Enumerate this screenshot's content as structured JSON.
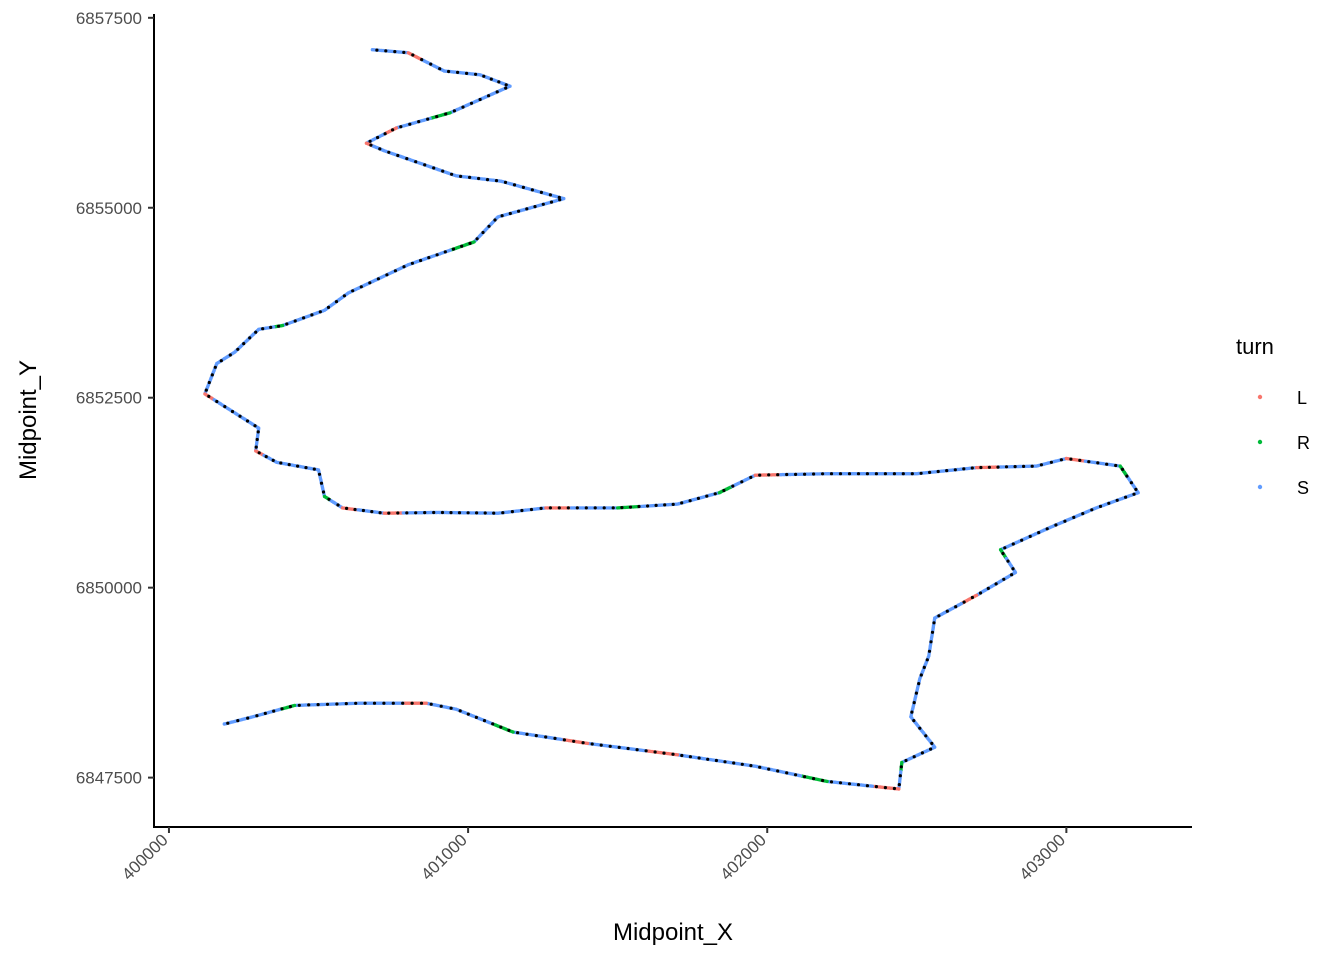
{
  "chart_data": {
    "type": "scatter",
    "title": "",
    "xlabel": "Midpoint_X",
    "ylabel": "Midpoint_Y",
    "xlim": [
      399950,
      403420
    ],
    "ylim": [
      6846850,
      6857550
    ],
    "x_ticks": [
      400000,
      401000,
      402000,
      403000
    ],
    "y_ticks": [
      6847500,
      6850000,
      6852500,
      6855000,
      6857500
    ],
    "x_tick_labels": [
      "400000",
      "401000",
      "402000",
      "403000"
    ],
    "y_tick_labels": [
      "6847500",
      "6850000",
      "6852500",
      "6855000",
      "6857500"
    ],
    "grid": false,
    "legend": {
      "title": "turn",
      "position": "right",
      "entries": [
        {
          "label": "L",
          "color": "#F8766D"
        },
        {
          "label": "R",
          "color": "#00BA38"
        },
        {
          "label": "S",
          "color": "#619CFF"
        }
      ]
    },
    "overlay_point_color": "#000000",
    "track": {
      "x": [
        400680,
        400800,
        400920,
        401040,
        401140,
        400940,
        400760,
        400660,
        400720,
        400960,
        401110,
        401320,
        401100,
        401020,
        400800,
        400600,
        400520,
        400380,
        400300,
        400220,
        400160,
        400120,
        400200,
        400300,
        400290,
        400360,
        400500,
        400520,
        400580,
        400720,
        400900,
        401100,
        401260,
        401500,
        401700,
        401840,
        401960,
        402200,
        402500,
        402700,
        402900,
        403000,
        403180,
        403240,
        403100,
        402950,
        402780,
        402830,
        402700,
        402560,
        402540,
        402510,
        402480,
        402560,
        402450,
        402440,
        402200,
        401960,
        401700,
        401400,
        401150,
        400960,
        400860,
        400640,
        400420,
        400280,
        400180
      ],
      "y": [
        6857080,
        6857040,
        6856800,
        6856750,
        6856600,
        6856250,
        6856050,
        6855850,
        6855750,
        6855420,
        6855350,
        6855120,
        6854880,
        6854550,
        6854250,
        6853880,
        6853650,
        6853450,
        6853400,
        6853100,
        6852950,
        6852550,
        6852350,
        6852100,
        6851800,
        6851650,
        6851550,
        6851200,
        6851050,
        6850980,
        6850990,
        6850980,
        6851050,
        6851050,
        6851100,
        6851250,
        6851480,
        6851500,
        6851500,
        6851580,
        6851600,
        6851700,
        6851600,
        6851250,
        6851050,
        6850800,
        6850500,
        6850200,
        6849900,
        6849600,
        6849100,
        6848800,
        6848300,
        6847900,
        6847700,
        6847350,
        6847450,
        6847650,
        6847800,
        6847950,
        6848100,
        6848400,
        6848480,
        6848480,
        6848450,
        6848300,
        6848200
      ],
      "turn": [
        "S",
        "L",
        "S",
        "S",
        "S",
        "R",
        "L",
        "L",
        "S",
        "S",
        "S",
        "S",
        "S",
        "R",
        "S",
        "S",
        "S",
        "R",
        "S",
        "S",
        "S",
        "L",
        "S",
        "S",
        "L",
        "S",
        "S",
        "R",
        "L",
        "L",
        "S",
        "S",
        "L",
        "R",
        "S",
        "R",
        "L",
        "S",
        "S",
        "L",
        "S",
        "L",
        "R",
        "S",
        "S",
        "S",
        "R",
        "S",
        "L",
        "S",
        "S",
        "S",
        "S",
        "S",
        "R",
        "L",
        "R",
        "S",
        "L",
        "L",
        "R",
        "S",
        "L",
        "S",
        "R",
        "S",
        "L"
      ]
    }
  }
}
